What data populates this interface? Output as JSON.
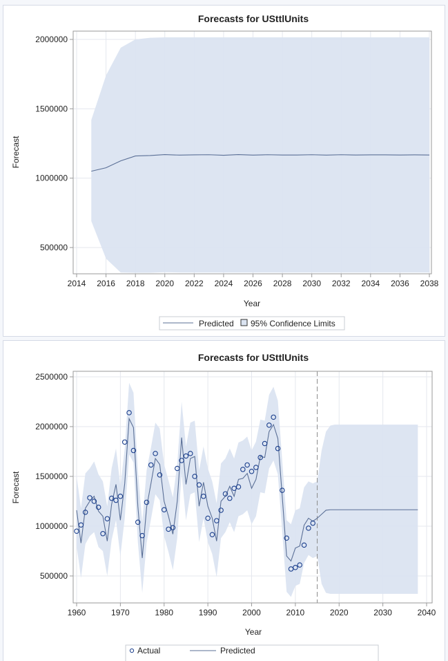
{
  "chart_data": [
    {
      "type": "area",
      "title": "Forecasts for USttlUnits",
      "xlabel": "Year",
      "ylabel": "Forecast",
      "xlim": [
        2014,
        2038
      ],
      "ylim": [
        300000,
        2020000
      ],
      "xticks": [
        "2014",
        "2016",
        "2018",
        "2020",
        "2022",
        "2024",
        "2026",
        "2028",
        "2030",
        "2032",
        "2034",
        "2036",
        "2038"
      ],
      "yticks": [
        "500000",
        "1000000",
        "1500000",
        "2000000"
      ],
      "legend": {
        "position": "bottom",
        "entries": [
          "Predicted",
          "95% Confidence Limits"
        ]
      },
      "colors": {
        "band": "#dbe4f1",
        "line": "#5a6f96",
        "grid": "#e4e7ee",
        "frame": "#9a9a9a"
      },
      "x": [
        2015,
        2016,
        2017,
        2018,
        2019,
        2020,
        2021,
        2022,
        2023,
        2024,
        2025,
        2026,
        2027,
        2028,
        2029,
        2030,
        2031,
        2032,
        2033,
        2034,
        2035,
        2036,
        2037,
        2038
      ],
      "series": [
        {
          "name": "Predicted",
          "values": [
            1050000,
            1075000,
            1125000,
            1160000,
            1163000,
            1170000,
            1166000,
            1168000,
            1169000,
            1165000,
            1170000,
            1166000,
            1169000,
            1167000,
            1167000,
            1169000,
            1166000,
            1169000,
            1167000,
            1168000,
            1168000,
            1167000,
            1168000,
            1167000
          ]
        },
        {
          "name": "Upper 95%",
          "values": [
            1420000,
            1740000,
            1940000,
            2000000,
            2012000,
            2015000,
            2015000,
            2015000,
            2015000,
            2015000,
            2015000,
            2015000,
            2015000,
            2015000,
            2015000,
            2015000,
            2015000,
            2015000,
            2015000,
            2015000,
            2015000,
            2015000,
            2015000,
            2015000
          ]
        },
        {
          "name": "Lower 95%",
          "values": [
            690000,
            420000,
            320000,
            318000,
            318000,
            322000,
            320000,
            320000,
            320000,
            320000,
            320000,
            320000,
            320000,
            320000,
            320000,
            320000,
            320000,
            320000,
            320000,
            320000,
            320000,
            320000,
            320000,
            320000
          ]
        }
      ]
    },
    {
      "type": "line",
      "title": "Forecasts for USttlUnits",
      "xlabel": "Year",
      "ylabel": "Forecast",
      "xlim": [
        1958.5,
        2041
      ],
      "ylim": [
        260000,
        2560000
      ],
      "xticks": [
        "1960",
        "1970",
        "1980",
        "1990",
        "2000",
        "2010",
        "2020",
        "2030",
        "2040"
      ],
      "yticks": [
        "500000",
        "1000000",
        "1500000",
        "2000000",
        "2500000"
      ],
      "reference_line_x": 2015,
      "legend": {
        "position": "bottom",
        "entries": [
          "Actual",
          "Predicted"
        ]
      },
      "colors": {
        "band": "#dbe4f1",
        "line": "#5a6f96",
        "marker": "#1a3e8c",
        "grid": "#e4e7ee",
        "frame": "#9a9a9a",
        "refline": "#8a8a8a"
      },
      "actual": {
        "x": [
          1960,
          1961,
          1962,
          1963,
          1964,
          1965,
          1966,
          1967,
          1968,
          1969,
          1970,
          1971,
          1972,
          1973,
          1974,
          1975,
          1976,
          1977,
          1978,
          1979,
          1980,
          1981,
          1982,
          1983,
          1984,
          1985,
          1986,
          1987,
          1988,
          1989,
          1990,
          1991,
          1992,
          1993,
          1994,
          1995,
          1996,
          1997,
          1998,
          1999,
          2000,
          2001,
          2002,
          2003,
          2004,
          2005,
          2006,
          2007,
          2008,
          2009,
          2010,
          2011,
          2012,
          2013,
          2014
        ],
        "values": [
          950000,
          1012000,
          1140000,
          1285000,
          1250000,
          1190000,
          925000,
          1075000,
          1280000,
          1260000,
          1300000,
          1845000,
          2140000,
          1760000,
          1040000,
          905000,
          1240000,
          1615000,
          1730000,
          1515000,
          1165000,
          970000,
          985000,
          1580000,
          1660000,
          1705000,
          1730000,
          1500000,
          1415000,
          1300000,
          1080000,
          915000,
          1055000,
          1160000,
          1325000,
          1280000,
          1380000,
          1395000,
          1570000,
          1615000,
          1550000,
          1590000,
          1690000,
          1830000,
          2015000,
          2095000,
          1780000,
          1360000,
          880000,
          570000,
          585000,
          610000,
          810000,
          980000,
          1030000
        ]
      },
      "predicted": {
        "x": [
          1960,
          1961,
          1962,
          1963,
          1964,
          1965,
          1966,
          1967,
          1968,
          1969,
          1970,
          1971,
          1972,
          1973,
          1974,
          1975,
          1976,
          1977,
          1978,
          1979,
          1980,
          1981,
          1982,
          1983,
          1984,
          1985,
          1986,
          1987,
          1988,
          1989,
          1990,
          1991,
          1992,
          1993,
          1994,
          1995,
          1996,
          1997,
          1998,
          1999,
          2000,
          2001,
          2002,
          2003,
          2004,
          2005,
          2006,
          2007,
          2008,
          2009,
          2010,
          2011,
          2012,
          2013,
          2014,
          2015,
          2016,
          2017,
          2018,
          2019,
          2020,
          2025,
          2030,
          2038
        ],
        "values": [
          1160000,
          830000,
          1180000,
          1250000,
          1300000,
          1150000,
          1100000,
          850000,
          1220000,
          1420000,
          1060000,
          1430000,
          2080000,
          1990000,
          1200000,
          680000,
          1190000,
          1430000,
          1680000,
          1620000,
          1250000,
          1100000,
          920000,
          1250000,
          1890000,
          1420000,
          1680000,
          1700000,
          1200000,
          1440000,
          1200000,
          1080000,
          850000,
          1250000,
          1300000,
          1400000,
          1300000,
          1470000,
          1480000,
          1530000,
          1380000,
          1470000,
          1700000,
          1690000,
          1950000,
          2020000,
          1880000,
          1300000,
          700000,
          650000,
          780000,
          800000,
          1010000,
          1080000,
          1050000,
          1080000,
          1120000,
          1160000,
          1165000,
          1165000,
          1165000,
          1165000,
          1165000,
          1165000
        ]
      },
      "upper": {
        "x": [
          1960,
          1961,
          1962,
          1963,
          1964,
          1965,
          1966,
          1967,
          1968,
          1969,
          1970,
          1971,
          1972,
          1973,
          1974,
          1975,
          1976,
          1977,
          1978,
          1979,
          1980,
          1981,
          1982,
          1983,
          1984,
          1985,
          1986,
          1987,
          1988,
          1989,
          1990,
          1991,
          1992,
          1993,
          1994,
          1995,
          1996,
          1997,
          1998,
          1999,
          2000,
          2001,
          2002,
          2003,
          2004,
          2005,
          2006,
          2007,
          2008,
          2009,
          2010,
          2011,
          2012,
          2013,
          2014,
          2015,
          2016,
          2017,
          2018,
          2019,
          2020,
          2025,
          2030,
          2038
        ],
        "values": [
          1500000,
          1180000,
          1530000,
          1580000,
          1650000,
          1520000,
          1450000,
          1200000,
          1580000,
          1780000,
          1400000,
          1780000,
          2440000,
          2340000,
          1560000,
          1040000,
          1560000,
          1790000,
          2040000,
          1980000,
          1620000,
          1460000,
          1290000,
          1620000,
          2250000,
          1800000,
          2040000,
          2060000,
          1560000,
          1800000,
          1580000,
          1450000,
          1230000,
          1630000,
          1680000,
          1780000,
          1680000,
          1840000,
          1860000,
          1900000,
          1760000,
          1850000,
          2070000,
          2060000,
          2320000,
          2400000,
          2260000,
          1660000,
          1060000,
          1020000,
          1160000,
          1180000,
          1390000,
          1450000,
          1430000,
          1450000,
          1760000,
          1950000,
          2010000,
          2020000,
          2020000,
          2020000,
          2020000,
          2020000
        ]
      },
      "lower": {
        "x": [
          1960,
          1961,
          1962,
          1963,
          1964,
          1965,
          1966,
          1967,
          1968,
          1969,
          1970,
          1971,
          1972,
          1973,
          1974,
          1975,
          1976,
          1977,
          1978,
          1979,
          1980,
          1981,
          1982,
          1983,
          1984,
          1985,
          1986,
          1987,
          1988,
          1989,
          1990,
          1991,
          1992,
          1993,
          1994,
          1995,
          1996,
          1997,
          1998,
          1999,
          2000,
          2001,
          2002,
          2003,
          2004,
          2005,
          2006,
          2007,
          2008,
          2009,
          2010,
          2011,
          2012,
          2013,
          2014,
          2015,
          2016,
          2017,
          2018,
          2019,
          2020,
          2025,
          2030,
          2038
        ],
        "values": [
          800000,
          480000,
          820000,
          900000,
          940000,
          790000,
          750000,
          500000,
          860000,
          1060000,
          700000,
          1080000,
          1720000,
          1640000,
          840000,
          330000,
          830000,
          1070000,
          1320000,
          1260000,
          900000,
          740000,
          560000,
          880000,
          1530000,
          1060000,
          1320000,
          1340000,
          840000,
          1080000,
          840000,
          720000,
          490000,
          880000,
          940000,
          1040000,
          940000,
          1100000,
          1120000,
          1160000,
          1020000,
          1100000,
          1340000,
          1330000,
          1580000,
          1660000,
          1520000,
          940000,
          340000,
          290000,
          400000,
          420000,
          630000,
          710000,
          680000,
          700000,
          420000,
          330000,
          320000,
          320000,
          320000,
          320000,
          320000,
          320000
        ]
      }
    }
  ]
}
